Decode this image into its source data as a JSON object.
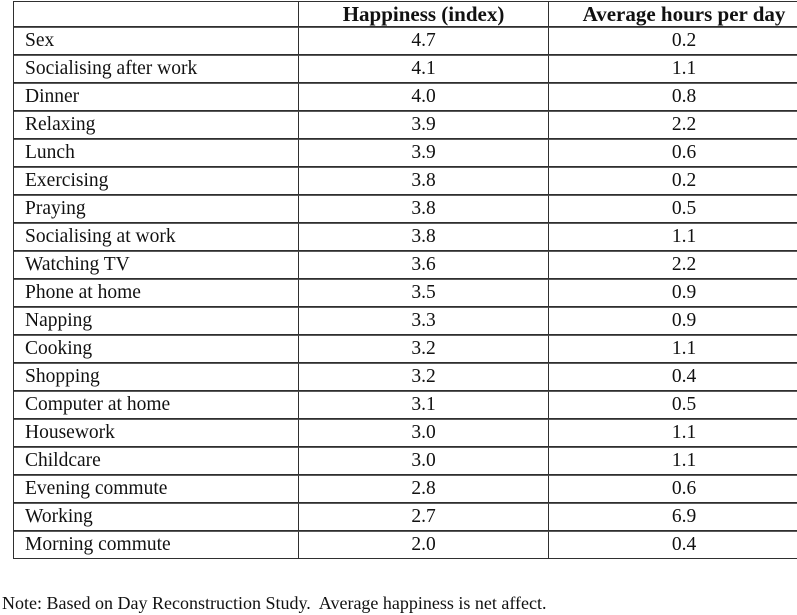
{
  "table": {
    "columns": [
      "",
      "Happiness (index)",
      "Average hours per day"
    ],
    "rows": [
      {
        "activity": "Sex",
        "happiness": "4.7",
        "hours": "0.2"
      },
      {
        "activity": "Socialising after work",
        "happiness": "4.1",
        "hours": "1.1"
      },
      {
        "activity": "Dinner",
        "happiness": "4.0",
        "hours": "0.8"
      },
      {
        "activity": "Relaxing",
        "happiness": "3.9",
        "hours": "2.2"
      },
      {
        "activity": "Lunch",
        "happiness": "3.9",
        "hours": "0.6"
      },
      {
        "activity": "Exercising",
        "happiness": "3.8",
        "hours": "0.2"
      },
      {
        "activity": "Praying",
        "happiness": "3.8",
        "hours": "0.5"
      },
      {
        "activity": "Socialising at work",
        "happiness": "3.8",
        "hours": "1.1"
      },
      {
        "activity": "Watching TV",
        "happiness": "3.6",
        "hours": "2.2"
      },
      {
        "activity": "Phone at home",
        "happiness": "3.5",
        "hours": "0.9"
      },
      {
        "activity": "Napping",
        "happiness": "3.3",
        "hours": "0.9"
      },
      {
        "activity": "Cooking",
        "happiness": "3.2",
        "hours": "1.1"
      },
      {
        "activity": "Shopping",
        "happiness": "3.2",
        "hours": "0.4"
      },
      {
        "activity": "Computer at home",
        "happiness": "3.1",
        "hours": "0.5"
      },
      {
        "activity": "Housework",
        "happiness": "3.0",
        "hours": "1.1"
      },
      {
        "activity": "Childcare",
        "happiness": "3.0",
        "hours": "1.1"
      },
      {
        "activity": "Evening commute",
        "happiness": "2.8",
        "hours": "0.6"
      },
      {
        "activity": "Working",
        "happiness": "2.7",
        "hours": "6.9"
      },
      {
        "activity": "Morning commute",
        "happiness": "2.0",
        "hours": "0.4"
      }
    ]
  },
  "note": "Note: Based on Day Reconstruction Study.  Average happiness is net affect."
}
